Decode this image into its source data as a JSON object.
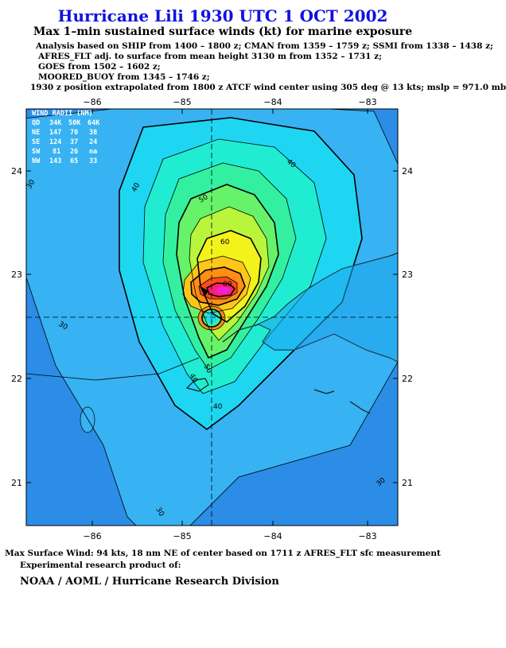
{
  "title": "Hurricane Lili 1930 UTC 1 OCT 2002",
  "subtitle": "Max 1–min sustained surface winds (kt) for marine exposure",
  "analysis_lines": [
    "Analysis based on  SHIP from 1400 – 1800 z;  CMAN from 1359 – 1759 z;  SSMI from 1338 – 1438 z;",
    "AFRES_FLT adj. to surface from mean height 3130 m from 1352 – 1731 z;",
    "GOES from 1502 – 1602 z;",
    "MOORED_BUOY from 1345 – 1746 z;",
    "1930 z position extrapolated from 1800 z ATCF wind center using 305 deg @ 13 kts; mslp = 971.0 mb"
  ],
  "axes": {
    "lon_ticks": [
      "−86",
      "−85",
      "−84",
      "−83"
    ],
    "lat_ticks": [
      "24",
      "23",
      "22",
      "21"
    ]
  },
  "wind_radii": {
    "title": "WIND RADII (NM)",
    "header": [
      "QD",
      "34K",
      "50K",
      "64K"
    ],
    "rows": [
      [
        "NE",
        "147",
        "70",
        "38"
      ],
      [
        "SE",
        "124",
        "37",
        "24"
      ],
      [
        "SW",
        "81",
        "26",
        "na"
      ],
      [
        "NW",
        "143",
        "65",
        "33"
      ]
    ]
  },
  "contour_labels": [
    "40",
    "30",
    "40",
    "50",
    "60",
    "80",
    "40",
    "50",
    "40",
    "30",
    "30",
    "30"
  ],
  "colors": {
    "title": "#1010e0",
    "wind_bands": [
      "#2b8de6",
      "#37b2f2",
      "#1fd6f2",
      "#20ecd2",
      "#33f0a0",
      "#66f36a",
      "#b9f53a",
      "#f3f21a",
      "#ffc61a",
      "#ff8e14",
      "#ff4a1a",
      "#ff1f72",
      "#f21fd6"
    ],
    "land": "#1a1a1a"
  },
  "max_wind_text": "Max Surface Wind: 94 kts, 18 nm NE of center based on 1711 z AFRES_FLT sfc measurement",
  "credit_line1": "Experimental research product of:",
  "credit_line2": "NOAA / AOML / Hurricane Research Division"
}
